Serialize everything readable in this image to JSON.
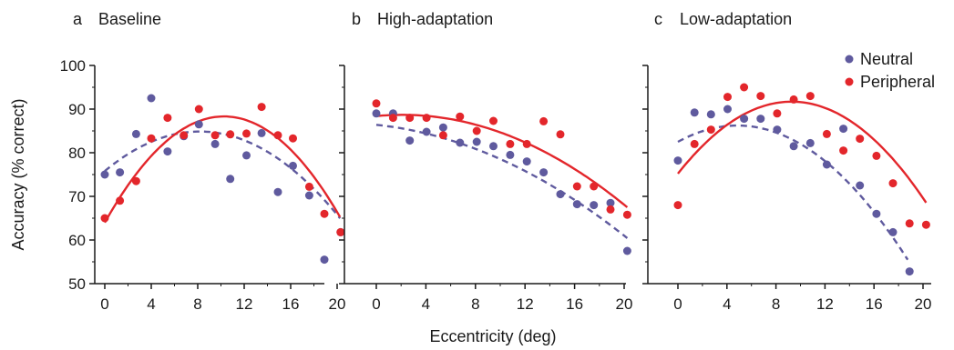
{
  "figure": {
    "xlabel": "Eccentricity (deg)",
    "ylabel": "Accuracy (% correct)"
  },
  "legend": {
    "items": [
      {
        "label": "Neutral",
        "color": "#5f5a9e"
      },
      {
        "label": "Peripheral",
        "color": "#e3262b"
      }
    ]
  },
  "chart_data": [
    {
      "type": "scatter",
      "panel_letter": "a",
      "title": "Baseline",
      "xlim": [
        -1,
        22
      ],
      "ylim": [
        50,
        100
      ],
      "xticks": [
        "0",
        "4",
        "8",
        "12",
        "16",
        "20"
      ],
      "yticks": [
        "50",
        "60",
        "70",
        "80",
        "90",
        "100"
      ],
      "series": [
        {
          "name": "Neutral",
          "color": "#5f5a9e",
          "line_style": "dashed",
          "points": [
            [
              0,
              75
            ],
            [
              1.3,
              75.5
            ],
            [
              2.7,
              84.3
            ],
            [
              4,
              92.5
            ],
            [
              5.4,
              80.3
            ],
            [
              6.8,
              83.8
            ],
            [
              8.1,
              86.5
            ],
            [
              9.5,
              82
            ],
            [
              10.8,
              74
            ],
            [
              12.2,
              79.4
            ],
            [
              13.5,
              84.5
            ],
            [
              14.9,
              71
            ],
            [
              16.2,
              77
            ],
            [
              17.6,
              70.2
            ],
            [
              18.9,
              55.5
            ],
            [
              20.3,
              61.8
            ]
          ],
          "fit": [
            75.8,
            2.22,
            -0.136
          ]
        },
        {
          "name": "Peripheral",
          "color": "#e3262b",
          "line_style": "solid",
          "points": [
            [
              0,
              65
            ],
            [
              1.3,
              69
            ],
            [
              2.7,
              73.5
            ],
            [
              4,
              83.3
            ],
            [
              5.4,
              88
            ],
            [
              6.8,
              84
            ],
            [
              8.1,
              90
            ],
            [
              9.5,
              84
            ],
            [
              10.8,
              84.2
            ],
            [
              12.2,
              84.4
            ],
            [
              13.5,
              90.5
            ],
            [
              14.9,
              84
            ],
            [
              16.2,
              83.3
            ],
            [
              17.6,
              72.2
            ],
            [
              18.9,
              66
            ],
            [
              20.3,
              61.8
            ]
          ],
          "fit": [
            64.0,
            4.74,
            -0.231
          ]
        }
      ]
    },
    {
      "type": "scatter",
      "panel_letter": "b",
      "title": "High-adaptation",
      "xlim": [
        -1,
        22
      ],
      "ylim": [
        50,
        100
      ],
      "xticks": [
        "0",
        "4",
        "8",
        "12",
        "16",
        "20"
      ],
      "yticks": [
        "50",
        "60",
        "70",
        "80",
        "90",
        "100"
      ],
      "series": [
        {
          "name": "Neutral",
          "color": "#5f5a9e",
          "line_style": "dashed",
          "points": [
            [
              0,
              89
            ],
            [
              1.35,
              89
            ],
            [
              2.7,
              82.8
            ],
            [
              4.05,
              84.8
            ],
            [
              5.4,
              85.8
            ],
            [
              6.75,
              82.3
            ],
            [
              8.1,
              82.5
            ],
            [
              9.45,
              81.5
            ],
            [
              10.8,
              79.5
            ],
            [
              12.15,
              78
            ],
            [
              13.5,
              75.5
            ],
            [
              14.85,
              70.5
            ],
            [
              16.2,
              68.2
            ],
            [
              17.55,
              68
            ],
            [
              18.9,
              68.5
            ],
            [
              20.25,
              57.5
            ]
          ],
          "fit": [
            86.4,
            -0.3,
            -0.0485
          ]
        },
        {
          "name": "Peripheral",
          "color": "#e3262b",
          "line_style": "solid",
          "points": [
            [
              0,
              91.3
            ],
            [
              1.35,
              88
            ],
            [
              2.7,
              88
            ],
            [
              4.05,
              88
            ],
            [
              5.4,
              84
            ],
            [
              6.75,
              88.3
            ],
            [
              8.1,
              85
            ],
            [
              9.45,
              87.3
            ],
            [
              10.8,
              82
            ],
            [
              12.15,
              82
            ],
            [
              13.5,
              87.2
            ],
            [
              14.85,
              84.2
            ],
            [
              16.2,
              72.3
            ],
            [
              17.55,
              72.3
            ],
            [
              18.9,
              67
            ],
            [
              20.25,
              65.8
            ]
          ],
          "fit": [
            88.4,
            0.27,
            -0.0643
          ]
        }
      ]
    },
    {
      "type": "scatter",
      "panel_letter": "c",
      "title": "Low-adaptation",
      "xlim": [
        -1,
        22
      ],
      "ylim": [
        50,
        100
      ],
      "xticks": [
        "0",
        "4",
        "8",
        "12",
        "16",
        "20"
      ],
      "yticks": [
        "50",
        "60",
        "70",
        "80",
        "90",
        "100"
      ],
      "series": [
        {
          "name": "Neutral",
          "color": "#5f5a9e",
          "line_style": "dashed",
          "points": [
            [
              0,
              78.2
            ],
            [
              1.35,
              89.2
            ],
            [
              2.7,
              88.8
            ],
            [
              4.05,
              90
            ],
            [
              5.4,
              87.8
            ],
            [
              6.75,
              87.8
            ],
            [
              8.1,
              85.3
            ],
            [
              9.45,
              81.5
            ],
            [
              10.8,
              82.2
            ],
            [
              12.15,
              77.3
            ],
            [
              13.5,
              85.5
            ],
            [
              14.85,
              72.5
            ],
            [
              16.2,
              66
            ],
            [
              17.55,
              61.8
            ],
            [
              18.9,
              52.8
            ]
          ],
          "fit": [
            82.5,
            1.54,
            -0.159
          ]
        },
        {
          "name": "Peripheral",
          "color": "#e3262b",
          "line_style": "solid",
          "points": [
            [
              0,
              68
            ],
            [
              1.35,
              82
            ],
            [
              2.7,
              85.3
            ],
            [
              4.05,
              92.8
            ],
            [
              5.4,
              95
            ],
            [
              6.75,
              93
            ],
            [
              8.1,
              89
            ],
            [
              9.45,
              92.2
            ],
            [
              10.8,
              93
            ],
            [
              12.15,
              84.3
            ],
            [
              13.5,
              80.5
            ],
            [
              14.85,
              83.2
            ],
            [
              16.2,
              79.3
            ],
            [
              17.55,
              73
            ],
            [
              18.9,
              63.8
            ],
            [
              20.25,
              63.5
            ]
          ],
          "fit": [
            75.2,
            3.56,
            -0.192
          ]
        }
      ]
    }
  ]
}
